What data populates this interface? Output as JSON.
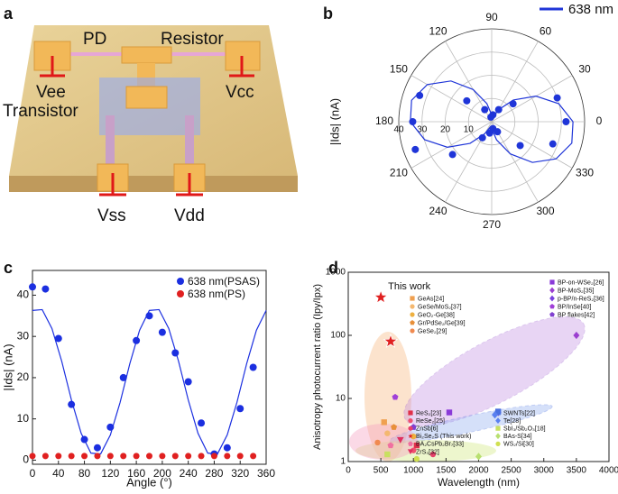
{
  "diagram": {
    "label": "a",
    "labels": [
      "PD",
      "Resistor",
      "Vee",
      "Vcc",
      "Transistor",
      "Vss",
      "Vdd"
    ]
  },
  "chart_data": [
    {
      "type": "polar",
      "label": "b",
      "ylabel": "|Ids| (nA)",
      "rlim": [
        0,
        40
      ],
      "rticks": [
        0,
        10,
        20,
        30,
        40
      ],
      "thetaticks": [
        0,
        30,
        60,
        90,
        120,
        150,
        180,
        210,
        240,
        270,
        300,
        330
      ],
      "series": [
        {
          "name": "638 nm",
          "color": "#1f35d8",
          "theta": [
            0,
            20,
            40,
            60,
            80,
            100,
            120,
            140,
            160,
            180,
            200,
            220,
            240,
            260,
            280,
            300,
            320,
            340
          ],
          "values": [
            32,
            30,
            12,
            6,
            3,
            2,
            6,
            14,
            33,
            34,
            35,
            22,
            8,
            5,
            3,
            5,
            16,
            28
          ],
          "fit_theta": [
            0,
            15,
            30,
            45,
            60,
            75,
            90,
            105,
            120,
            135,
            150,
            165,
            180,
            195,
            210,
            225,
            240,
            255,
            270,
            285,
            300,
            315,
            330,
            345,
            360
          ],
          "fit_values": [
            35.0,
            29.9,
            22.0,
            13.2,
            6.0,
            2.3,
            3.0,
            8.1,
            16.0,
            24.8,
            32.0,
            35.7,
            35.0,
            29.9,
            22.0,
            13.2,
            6.0,
            2.3,
            3.0,
            8.1,
            16.0,
            24.8,
            32.0,
            35.7,
            35.0
          ]
        }
      ]
    },
    {
      "type": "line",
      "label": "c",
      "xlabel": "Angle (°)",
      "ylabel": "|Ids| (nA)",
      "xlim": [
        0,
        360
      ],
      "xticks": [
        0,
        40,
        80,
        120,
        160,
        200,
        240,
        280,
        320,
        360
      ],
      "ylim": [
        -1,
        46
      ],
      "yticks": [
        0,
        10,
        20,
        30,
        40
      ],
      "series": [
        {
          "name": "638 nm(PSAS)",
          "color": "#1b2fe0",
          "x": [
            0,
            20,
            40,
            60,
            80,
            100,
            120,
            140,
            160,
            180,
            200,
            220,
            240,
            260,
            280,
            300,
            320,
            340
          ],
          "values": [
            42,
            41.5,
            29.5,
            13.5,
            5,
            3,
            8,
            20,
            29,
            35,
            31,
            26,
            19,
            9,
            1.5,
            3,
            12.5,
            22.5
          ]
        },
        {
          "name": "638 nm(PS)",
          "color": "#e02020",
          "x": [
            0,
            20,
            40,
            60,
            80,
            100,
            120,
            140,
            160,
            180,
            200,
            220,
            240,
            260,
            280,
            300,
            320,
            340
          ],
          "values": [
            1,
            1,
            1,
            1,
            1,
            1,
            1,
            1,
            1,
            1,
            1,
            1,
            1,
            1,
            1,
            1,
            1,
            1
          ]
        }
      ],
      "fit": {
        "color": "#1b2fe0",
        "x": [
          0,
          15,
          30,
          45,
          60,
          75,
          90,
          105,
          120,
          135,
          150,
          165,
          180,
          195,
          210,
          225,
          240,
          255,
          270,
          285,
          300,
          315,
          330,
          345,
          360
        ],
        "values": [
          36.3,
          36.5,
          31.9,
          24.0,
          14.6,
          6.5,
          1.7,
          1.5,
          6.1,
          14.0,
          23.4,
          31.5,
          36.3,
          36.5,
          31.9,
          24.0,
          14.6,
          6.5,
          1.7,
          1.5,
          6.1,
          14.0,
          23.4,
          31.5,
          36.3
        ]
      }
    },
    {
      "type": "scatter",
      "label": "d",
      "xlabel": "Wavelength (nm)",
      "ylabel": "Anisotropy photocurrent ratio (Ipy/Ipx)",
      "annotation": "This work",
      "xlim": [
        0,
        4000
      ],
      "xticks": [
        0,
        500,
        1000,
        1500,
        2000,
        2500,
        3000,
        3500,
        4000
      ],
      "ylim": [
        1,
        1000
      ],
      "yticks": [
        1,
        10,
        100,
        1000
      ],
      "ylog": true,
      "series": [
        {
          "name": "GeAs[24]",
          "color": "#f0a050",
          "marker": "square",
          "x": [
            550
          ],
          "values": [
            4.2
          ]
        },
        {
          "name": "GeSe/MoS₂[37]",
          "color": "#f4b870",
          "marker": "circle",
          "x": [
            600
          ],
          "values": [
            2.8
          ]
        },
        {
          "name": "GeO₂-Ge[38]",
          "color": "#eeb040",
          "marker": "circle",
          "x": [
            1000
          ],
          "values": [
            2.5
          ]
        },
        {
          "name": "Gr/PdSe₂/Ge[39]",
          "color": "#e8903a",
          "marker": "pentagon",
          "x": [
            700
          ],
          "values": [
            3.5
          ]
        },
        {
          "name": "GeSe₂[29]",
          "color": "#f08a50",
          "marker": "circle",
          "x": [
            450
          ],
          "values": [
            2
          ]
        },
        {
          "name": "BP-on-WSe₂[26]",
          "color": "#8a3ad8",
          "marker": "square",
          "x": [
            1550
          ],
          "values": [
            6
          ]
        },
        {
          "name": "BP-MoS₂[35]",
          "color": "#9b3fd0",
          "marker": "diamond",
          "x": [
            3500
          ],
          "values": [
            100
          ]
        },
        {
          "name": "p-BP/n-ReS₂[36]",
          "color": "#7a40e0",
          "marker": "diamond",
          "x": [
            2300
          ],
          "values": [
            6
          ]
        },
        {
          "name": "BP/InSe[40]",
          "color": "#a040d8",
          "marker": "pentagon",
          "x": [
            720
          ],
          "values": [
            10.5
          ]
        },
        {
          "name": "BP flakes[42]",
          "color": "#8040d0",
          "marker": "pentagon",
          "x": [
            1000
          ],
          "values": [
            3.5
          ]
        },
        {
          "name": "ReS₂[23]",
          "color": "#e0304a",
          "marker": "square",
          "x": [
            1050
          ],
          "values": [
            1.8
          ]
        },
        {
          "name": "ReSe₂[25]",
          "color": "#f05070",
          "marker": "circle",
          "x": [
            1000
          ],
          "values": [
            1.5
          ]
        },
        {
          "name": "ZnSb[6]",
          "color": "#e8406a",
          "marker": "circle",
          "x": [
            1300
          ],
          "values": [
            1.3
          ]
        },
        {
          "name": "Bi₂Se₂S (This work)",
          "color": "#e02020",
          "marker": "star",
          "x": [
            500,
            650
          ],
          "values": [
            400,
            80
          ]
        },
        {
          "name": "BA₂CsPb₂Br₇[33]",
          "color": "#f070a0",
          "marker": "pentagon",
          "x": [
            650
          ],
          "values": [
            1.8
          ]
        },
        {
          "name": "ZrS₃[32]",
          "color": "#e03060",
          "marker": "triangle",
          "x": [
            800
          ],
          "values": [
            2.2
          ]
        },
        {
          "name": "SWNTs[22]",
          "color": "#4a70e0",
          "marker": "square",
          "x": [
            2300
          ],
          "values": [
            6.2
          ]
        },
        {
          "name": "Te[28]",
          "color": "#5a80f0",
          "marker": "diamond",
          "x": [
            2250
          ],
          "values": [
            5.5
          ]
        },
        {
          "name": "SbI₃/Sb₂O₃[18]",
          "color": "#c8e060",
          "marker": "square",
          "x": [
            600
          ],
          "values": [
            1.3
          ]
        },
        {
          "name": "BAs-S[34]",
          "color": "#b8e070",
          "marker": "diamond",
          "x": [
            2000
          ],
          "values": [
            1.2
          ]
        },
        {
          "name": "WS₂/Si[30]",
          "color": "#d0e050",
          "marker": "circle",
          "x": [
            1050
          ],
          "values": [
            1.1
          ]
        }
      ]
    }
  ]
}
